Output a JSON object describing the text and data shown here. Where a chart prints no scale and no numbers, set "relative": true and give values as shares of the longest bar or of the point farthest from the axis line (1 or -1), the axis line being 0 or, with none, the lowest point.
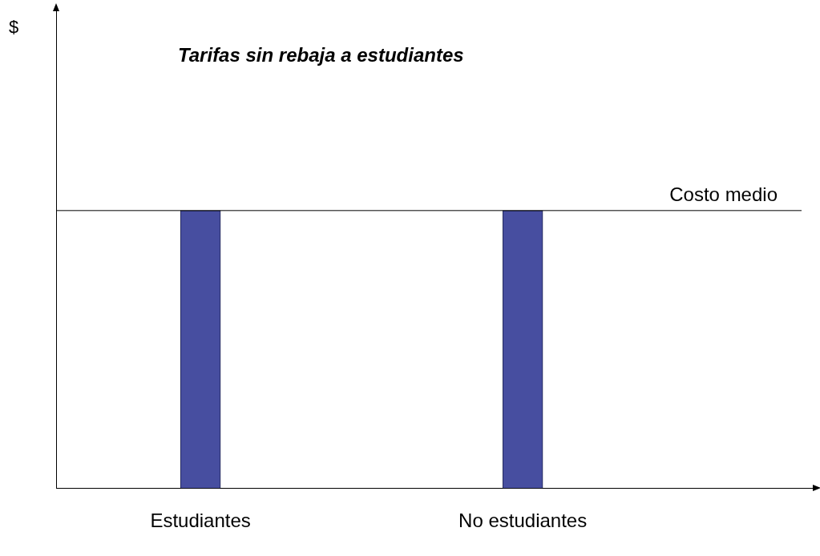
{
  "chart_data": {
    "type": "bar",
    "title": "Tarifas sin rebaja a estudiantes",
    "annotations": [
      "$"
    ],
    "categories": [
      "Estudiantes",
      "No estudiantes"
    ],
    "values": [
      1,
      1
    ],
    "color": "#474ea0",
    "relative": true,
    "grid": false,
    "legend": false,
    "ref_lines": [
      {
        "axis": "y",
        "value": 1,
        "label": "Costo medio",
        "color": "#000000"
      }
    ]
  }
}
